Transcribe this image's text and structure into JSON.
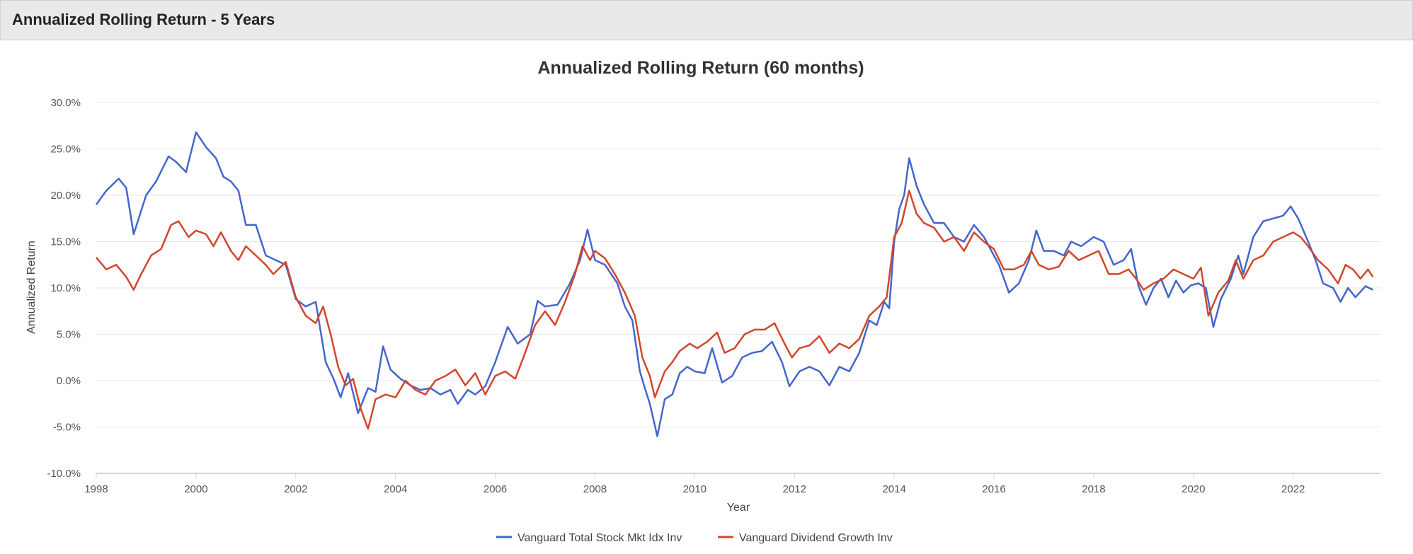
{
  "header": {
    "title": "Annualized Rolling Return - 5 Years"
  },
  "chart_data": {
    "type": "line",
    "title": "Annualized Rolling Return (60 months)",
    "xlabel": "Year",
    "ylabel": "Annualized Return",
    "x_ticks": [
      "1998",
      "2000",
      "2002",
      "2004",
      "2006",
      "2008",
      "2010",
      "2012",
      "2014",
      "2016",
      "2018",
      "2020",
      "2022"
    ],
    "y_ticks": [
      "30.0%",
      "25.0%",
      "20.0%",
      "15.0%",
      "10.0%",
      "5.0%",
      "0.0%",
      "-5.0%",
      "-10.0%"
    ],
    "xlim": [
      1998.0,
      2023.75
    ],
    "ylim": [
      -10,
      30
    ],
    "grid": "horizontal",
    "legend_position": "bottom-center",
    "series": [
      {
        "name": "Vanguard Total Stock Mkt Idx Inv",
        "color": "#4466cc",
        "points": [
          [
            1998.0,
            19.0
          ],
          [
            1998.2,
            20.5
          ],
          [
            1998.45,
            21.8
          ],
          [
            1998.6,
            20.8
          ],
          [
            1998.75,
            15.8
          ],
          [
            1999.0,
            20.0
          ],
          [
            1999.2,
            21.5
          ],
          [
            1999.45,
            24.2
          ],
          [
            1999.6,
            23.6
          ],
          [
            1999.8,
            22.5
          ],
          [
            2000.0,
            26.8
          ],
          [
            2000.2,
            25.2
          ],
          [
            2000.4,
            24.0
          ],
          [
            2000.55,
            22.0
          ],
          [
            2000.7,
            21.5
          ],
          [
            2000.85,
            20.5
          ],
          [
            2001.0,
            16.8
          ],
          [
            2001.2,
            16.8
          ],
          [
            2001.4,
            13.5
          ],
          [
            2001.6,
            13.0
          ],
          [
            2001.8,
            12.5
          ],
          [
            2002.0,
            8.8
          ],
          [
            2002.2,
            8.0
          ],
          [
            2002.4,
            8.5
          ],
          [
            2002.6,
            2.0
          ],
          [
            2002.75,
            0.3
          ],
          [
            2002.9,
            -1.8
          ],
          [
            2003.05,
            0.8
          ],
          [
            2003.25,
            -3.5
          ],
          [
            2003.45,
            -0.8
          ],
          [
            2003.6,
            -1.2
          ],
          [
            2003.75,
            3.7
          ],
          [
            2003.9,
            1.2
          ],
          [
            2004.1,
            0.2
          ],
          [
            2004.3,
            -0.5
          ],
          [
            2004.5,
            -1.0
          ],
          [
            2004.7,
            -0.8
          ],
          [
            2004.9,
            -1.5
          ],
          [
            2005.1,
            -1.0
          ],
          [
            2005.25,
            -2.5
          ],
          [
            2005.45,
            -1.0
          ],
          [
            2005.6,
            -1.5
          ],
          [
            2005.8,
            -0.6
          ],
          [
            2006.0,
            2.0
          ],
          [
            2006.25,
            5.8
          ],
          [
            2006.45,
            4.0
          ],
          [
            2006.7,
            5.0
          ],
          [
            2006.85,
            8.6
          ],
          [
            2007.0,
            8.0
          ],
          [
            2007.25,
            8.2
          ],
          [
            2007.5,
            10.5
          ],
          [
            2007.7,
            13.0
          ],
          [
            2007.85,
            16.3
          ],
          [
            2008.0,
            13.0
          ],
          [
            2008.2,
            12.5
          ],
          [
            2008.45,
            10.5
          ],
          [
            2008.6,
            8.0
          ],
          [
            2008.75,
            6.5
          ],
          [
            2008.9,
            1.0
          ],
          [
            2009.0,
            -0.8
          ],
          [
            2009.1,
            -2.5
          ],
          [
            2009.25,
            -6.0
          ],
          [
            2009.4,
            -2.0
          ],
          [
            2009.55,
            -1.5
          ],
          [
            2009.7,
            0.8
          ],
          [
            2009.85,
            1.5
          ],
          [
            2010.0,
            1.0
          ],
          [
            2010.2,
            0.8
          ],
          [
            2010.35,
            3.5
          ],
          [
            2010.55,
            -0.2
          ],
          [
            2010.75,
            0.5
          ],
          [
            2010.95,
            2.5
          ],
          [
            2011.15,
            3.0
          ],
          [
            2011.35,
            3.2
          ],
          [
            2011.55,
            4.2
          ],
          [
            2011.75,
            2.0
          ],
          [
            2011.9,
            -0.6
          ],
          [
            2012.1,
            1.0
          ],
          [
            2012.3,
            1.5
          ],
          [
            2012.5,
            1.0
          ],
          [
            2012.7,
            -0.5
          ],
          [
            2012.9,
            1.5
          ],
          [
            2013.1,
            1.0
          ],
          [
            2013.3,
            3.0
          ],
          [
            2013.5,
            6.5
          ],
          [
            2013.65,
            6.0
          ],
          [
            2013.8,
            8.5
          ],
          [
            2013.9,
            7.8
          ],
          [
            2014.0,
            15.0
          ],
          [
            2014.1,
            18.5
          ],
          [
            2014.2,
            20.0
          ],
          [
            2014.3,
            24.0
          ],
          [
            2014.45,
            21.0
          ],
          [
            2014.6,
            19.0
          ],
          [
            2014.8,
            17.0
          ],
          [
            2015.0,
            17.0
          ],
          [
            2015.2,
            15.5
          ],
          [
            2015.4,
            15.0
          ],
          [
            2015.6,
            16.8
          ],
          [
            2015.8,
            15.5
          ],
          [
            2015.95,
            14.0
          ],
          [
            2016.1,
            12.5
          ],
          [
            2016.3,
            9.5
          ],
          [
            2016.5,
            10.5
          ],
          [
            2016.7,
            13.0
          ],
          [
            2016.85,
            16.2
          ],
          [
            2017.0,
            14.0
          ],
          [
            2017.2,
            14.0
          ],
          [
            2017.4,
            13.5
          ],
          [
            2017.55,
            15.0
          ],
          [
            2017.75,
            14.5
          ],
          [
            2018.0,
            15.5
          ],
          [
            2018.2,
            15.0
          ],
          [
            2018.4,
            12.5
          ],
          [
            2018.6,
            13.0
          ],
          [
            2018.75,
            14.2
          ],
          [
            2018.9,
            10.2
          ],
          [
            2019.05,
            8.2
          ],
          [
            2019.2,
            10.0
          ],
          [
            2019.35,
            11.0
          ],
          [
            2019.5,
            9.0
          ],
          [
            2019.65,
            10.8
          ],
          [
            2019.8,
            9.5
          ],
          [
            2019.95,
            10.3
          ],
          [
            2020.1,
            10.5
          ],
          [
            2020.25,
            10.0
          ],
          [
            2020.4,
            5.8
          ],
          [
            2020.55,
            8.8
          ],
          [
            2020.75,
            11.0
          ],
          [
            2020.9,
            13.5
          ],
          [
            2021.0,
            11.5
          ],
          [
            2021.2,
            15.5
          ],
          [
            2021.4,
            17.2
          ],
          [
            2021.6,
            17.5
          ],
          [
            2021.8,
            17.8
          ],
          [
            2021.95,
            18.8
          ],
          [
            2022.1,
            17.5
          ],
          [
            2022.3,
            15.0
          ],
          [
            2022.45,
            13.0
          ],
          [
            2022.6,
            10.5
          ],
          [
            2022.8,
            10.0
          ],
          [
            2022.95,
            8.5
          ],
          [
            2023.1,
            10.0
          ],
          [
            2023.25,
            9.0
          ],
          [
            2023.45,
            10.2
          ],
          [
            2023.6,
            9.8
          ]
        ]
      },
      {
        "name": "Vanguard Dividend Growth Inv",
        "color": "#d2462a",
        "points": [
          [
            1998.0,
            13.3
          ],
          [
            1998.2,
            12.0
          ],
          [
            1998.4,
            12.5
          ],
          [
            1998.6,
            11.2
          ],
          [
            1998.75,
            9.8
          ],
          [
            1998.9,
            11.5
          ],
          [
            1999.1,
            13.5
          ],
          [
            1999.3,
            14.2
          ],
          [
            1999.5,
            16.8
          ],
          [
            1999.65,
            17.2
          ],
          [
            1999.85,
            15.5
          ],
          [
            2000.0,
            16.2
          ],
          [
            2000.2,
            15.8
          ],
          [
            2000.35,
            14.5
          ],
          [
            2000.5,
            16.0
          ],
          [
            2000.7,
            14.0
          ],
          [
            2000.85,
            13.0
          ],
          [
            2001.0,
            14.5
          ],
          [
            2001.2,
            13.5
          ],
          [
            2001.4,
            12.5
          ],
          [
            2001.55,
            11.5
          ],
          [
            2001.8,
            12.8
          ],
          [
            2002.0,
            9.0
          ],
          [
            2002.2,
            7.0
          ],
          [
            2002.4,
            6.2
          ],
          [
            2002.55,
            8.0
          ],
          [
            2002.7,
            5.0
          ],
          [
            2002.85,
            1.5
          ],
          [
            2003.0,
            -0.5
          ],
          [
            2003.15,
            0.2
          ],
          [
            2003.3,
            -3.0
          ],
          [
            2003.45,
            -5.2
          ],
          [
            2003.6,
            -2.0
          ],
          [
            2003.8,
            -1.5
          ],
          [
            2004.0,
            -1.8
          ],
          [
            2004.2,
            0.0
          ],
          [
            2004.4,
            -1.0
          ],
          [
            2004.6,
            -1.5
          ],
          [
            2004.8,
            0.0
          ],
          [
            2005.0,
            0.5
          ],
          [
            2005.2,
            1.2
          ],
          [
            2005.4,
            -0.5
          ],
          [
            2005.6,
            0.8
          ],
          [
            2005.8,
            -1.5
          ],
          [
            2006.0,
            0.5
          ],
          [
            2006.2,
            1.0
          ],
          [
            2006.4,
            0.2
          ],
          [
            2006.6,
            3.0
          ],
          [
            2006.8,
            6.0
          ],
          [
            2007.0,
            7.5
          ],
          [
            2007.2,
            6.0
          ],
          [
            2007.4,
            8.5
          ],
          [
            2007.6,
            11.5
          ],
          [
            2007.75,
            14.5
          ],
          [
            2007.9,
            13.0
          ],
          [
            2008.0,
            14.0
          ],
          [
            2008.2,
            13.2
          ],
          [
            2008.4,
            11.5
          ],
          [
            2008.6,
            9.5
          ],
          [
            2008.8,
            7.0
          ],
          [
            2008.95,
            2.5
          ],
          [
            2009.1,
            0.5
          ],
          [
            2009.2,
            -1.8
          ],
          [
            2009.4,
            1.0
          ],
          [
            2009.55,
            2.0
          ],
          [
            2009.7,
            3.2
          ],
          [
            2009.9,
            4.0
          ],
          [
            2010.05,
            3.5
          ],
          [
            2010.25,
            4.2
          ],
          [
            2010.45,
            5.2
          ],
          [
            2010.6,
            3.0
          ],
          [
            2010.8,
            3.5
          ],
          [
            2011.0,
            5.0
          ],
          [
            2011.2,
            5.5
          ],
          [
            2011.4,
            5.5
          ],
          [
            2011.6,
            6.2
          ],
          [
            2011.8,
            4.0
          ],
          [
            2011.95,
            2.5
          ],
          [
            2012.1,
            3.5
          ],
          [
            2012.3,
            3.8
          ],
          [
            2012.5,
            4.8
          ],
          [
            2012.7,
            3.0
          ],
          [
            2012.9,
            4.0
          ],
          [
            2013.1,
            3.5
          ],
          [
            2013.3,
            4.5
          ],
          [
            2013.5,
            7.0
          ],
          [
            2013.7,
            8.0
          ],
          [
            2013.85,
            9.0
          ],
          [
            2014.0,
            15.5
          ],
          [
            2014.15,
            17.0
          ],
          [
            2014.3,
            20.5
          ],
          [
            2014.45,
            18.0
          ],
          [
            2014.6,
            17.0
          ],
          [
            2014.8,
            16.5
          ],
          [
            2015.0,
            15.0
          ],
          [
            2015.2,
            15.5
          ],
          [
            2015.4,
            14.0
          ],
          [
            2015.6,
            16.0
          ],
          [
            2015.8,
            15.0
          ],
          [
            2016.0,
            14.2
          ],
          [
            2016.2,
            12.0
          ],
          [
            2016.4,
            12.0
          ],
          [
            2016.6,
            12.5
          ],
          [
            2016.75,
            14.0
          ],
          [
            2016.9,
            12.5
          ],
          [
            2017.1,
            12.0
          ],
          [
            2017.3,
            12.3
          ],
          [
            2017.5,
            14.0
          ],
          [
            2017.7,
            13.0
          ],
          [
            2017.9,
            13.5
          ],
          [
            2018.1,
            14.0
          ],
          [
            2018.3,
            11.5
          ],
          [
            2018.5,
            11.5
          ],
          [
            2018.7,
            12.0
          ],
          [
            2018.85,
            11.0
          ],
          [
            2019.0,
            9.8
          ],
          [
            2019.2,
            10.5
          ],
          [
            2019.4,
            11.0
          ],
          [
            2019.6,
            12.0
          ],
          [
            2019.8,
            11.5
          ],
          [
            2020.0,
            11.0
          ],
          [
            2020.15,
            12.2
          ],
          [
            2020.3,
            7.0
          ],
          [
            2020.5,
            9.5
          ],
          [
            2020.7,
            10.8
          ],
          [
            2020.85,
            13.0
          ],
          [
            2021.0,
            11.0
          ],
          [
            2021.2,
            13.0
          ],
          [
            2021.4,
            13.5
          ],
          [
            2021.6,
            15.0
          ],
          [
            2021.8,
            15.5
          ],
          [
            2022.0,
            16.0
          ],
          [
            2022.15,
            15.5
          ],
          [
            2022.3,
            14.5
          ],
          [
            2022.5,
            13.0
          ],
          [
            2022.7,
            12.0
          ],
          [
            2022.9,
            10.5
          ],
          [
            2023.05,
            12.5
          ],
          [
            2023.2,
            12.0
          ],
          [
            2023.35,
            11.0
          ],
          [
            2023.5,
            12.0
          ],
          [
            2023.6,
            11.2
          ]
        ]
      }
    ]
  }
}
